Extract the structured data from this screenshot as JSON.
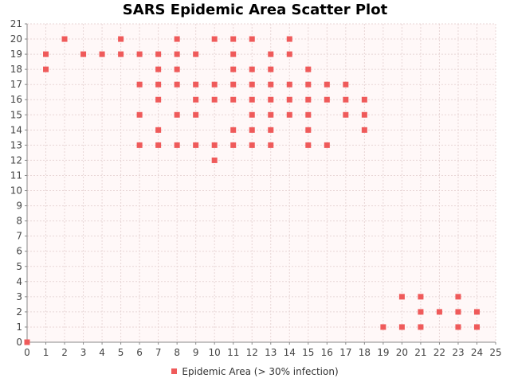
{
  "chart_data": {
    "type": "scatter",
    "title": "SARS Epidemic Area Scatter Plot",
    "xlim": [
      0,
      25
    ],
    "ylim": [
      0,
      21
    ],
    "xticks": [
      0,
      1,
      2,
      3,
      4,
      5,
      6,
      7,
      8,
      9,
      10,
      11,
      12,
      13,
      14,
      15,
      16,
      17,
      18,
      19,
      20,
      21,
      22,
      23,
      24,
      25
    ],
    "yticks": [
      0,
      1,
      2,
      3,
      4,
      5,
      6,
      7,
      8,
      9,
      10,
      11,
      12,
      13,
      14,
      15,
      16,
      17,
      18,
      19,
      20,
      21
    ],
    "grid": true,
    "legend_position": "bottom",
    "colors": {
      "series": "#ef5a5a",
      "plot_background": "#fff8f8",
      "grid": "#e8d6d6",
      "axis": "#888888"
    },
    "series": [
      {
        "name": "Epidemic Area (> 30% infection)",
        "points": [
          [
            0,
            0
          ],
          [
            1,
            19
          ],
          [
            1,
            18
          ],
          [
            2,
            20
          ],
          [
            3,
            19
          ],
          [
            4,
            19
          ],
          [
            5,
            20
          ],
          [
            5,
            19
          ],
          [
            6,
            19
          ],
          [
            6,
            17
          ],
          [
            6,
            15
          ],
          [
            6,
            13
          ],
          [
            7,
            19
          ],
          [
            7,
            18
          ],
          [
            7,
            17
          ],
          [
            7,
            16
          ],
          [
            7,
            14
          ],
          [
            7,
            13
          ],
          [
            8,
            20
          ],
          [
            8,
            19
          ],
          [
            8,
            18
          ],
          [
            8,
            17
          ],
          [
            8,
            15
          ],
          [
            8,
            13
          ],
          [
            9,
            19
          ],
          [
            9,
            17
          ],
          [
            9,
            16
          ],
          [
            9,
            15
          ],
          [
            9,
            13
          ],
          [
            10,
            20
          ],
          [
            10,
            17
          ],
          [
            10,
            16
          ],
          [
            10,
            13
          ],
          [
            10,
            12
          ],
          [
            11,
            20
          ],
          [
            11,
            19
          ],
          [
            11,
            18
          ],
          [
            11,
            17
          ],
          [
            11,
            16
          ],
          [
            11,
            14
          ],
          [
            11,
            13
          ],
          [
            12,
            20
          ],
          [
            12,
            18
          ],
          [
            12,
            17
          ],
          [
            12,
            16
          ],
          [
            12,
            15
          ],
          [
            12,
            14
          ],
          [
            12,
            13
          ],
          [
            13,
            19
          ],
          [
            13,
            18
          ],
          [
            13,
            17
          ],
          [
            13,
            16
          ],
          [
            13,
            15
          ],
          [
            13,
            14
          ],
          [
            13,
            13
          ],
          [
            14,
            20
          ],
          [
            14,
            19
          ],
          [
            14,
            17
          ],
          [
            14,
            16
          ],
          [
            14,
            15
          ],
          [
            15,
            18
          ],
          [
            15,
            17
          ],
          [
            15,
            16
          ],
          [
            15,
            15
          ],
          [
            15,
            14
          ],
          [
            15,
            13
          ],
          [
            16,
            17
          ],
          [
            16,
            16
          ],
          [
            16,
            13
          ],
          [
            17,
            17
          ],
          [
            17,
            16
          ],
          [
            17,
            15
          ],
          [
            18,
            16
          ],
          [
            18,
            15
          ],
          [
            18,
            14
          ],
          [
            19,
            1
          ],
          [
            20,
            3
          ],
          [
            20,
            1
          ],
          [
            21,
            3
          ],
          [
            21,
            2
          ],
          [
            21,
            1
          ],
          [
            22,
            2
          ],
          [
            23,
            3
          ],
          [
            23,
            2
          ],
          [
            23,
            1
          ],
          [
            24,
            2
          ],
          [
            24,
            1
          ]
        ]
      }
    ]
  }
}
